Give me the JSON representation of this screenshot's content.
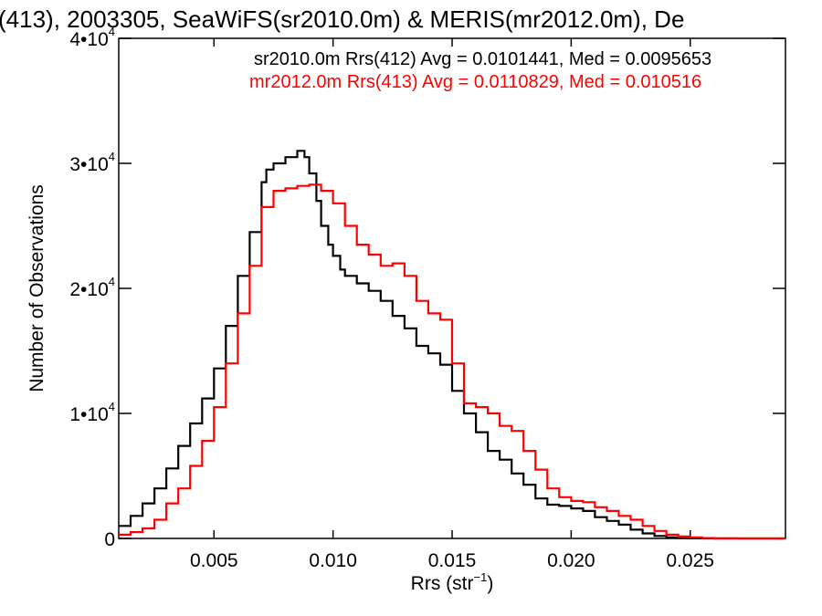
{
  "chart_data": {
    "type": "line",
    "title": "(413), 2003305, SeaWiFS(sr2010.0m) & MERIS(mr2012.0m), De",
    "xlabel": "Rrs (str",
    "xlabel_sup": "−1",
    "xlabel_close": ")",
    "ylabel": "Number of Observations",
    "xlim": [
      0.001,
      0.029
    ],
    "ylim": [
      0,
      40000
    ],
    "grid": false,
    "legend_position": "top-right",
    "xticks": [
      {
        "value": 0.005,
        "label": "0.005"
      },
      {
        "value": 0.01,
        "label": "0.010"
      },
      {
        "value": 0.015,
        "label": "0.015"
      },
      {
        "value": 0.02,
        "label": "0.020"
      },
      {
        "value": 0.025,
        "label": "0.025"
      }
    ],
    "yticks": [
      {
        "value": 0,
        "mant": "0",
        "exp": ""
      },
      {
        "value": 10000,
        "mant": "1•10",
        "exp": "4"
      },
      {
        "value": 20000,
        "mant": "2•10",
        "exp": "4"
      },
      {
        "value": 30000,
        "mant": "3•10",
        "exp": "4"
      },
      {
        "value": 40000,
        "mant": "4•10",
        "exp": "4"
      }
    ],
    "series": [
      {
        "name": "sr2010.0m Rrs(412) Avg = 0.0101441, Med = 0.0095653",
        "color": "#000000",
        "x": [
          0.001,
          0.0015,
          0.002,
          0.0025,
          0.003,
          0.0035,
          0.004,
          0.0045,
          0.005,
          0.0055,
          0.006,
          0.0065,
          0.007,
          0.0072,
          0.0075,
          0.008,
          0.0085,
          0.0088,
          0.009,
          0.0093,
          0.0095,
          0.0098,
          0.01,
          0.0103,
          0.0105,
          0.011,
          0.0115,
          0.012,
          0.0125,
          0.013,
          0.0135,
          0.014,
          0.0145,
          0.015,
          0.0155,
          0.016,
          0.0165,
          0.017,
          0.0175,
          0.018,
          0.0185,
          0.019,
          0.0195,
          0.02,
          0.0205,
          0.021,
          0.0215,
          0.022,
          0.0225,
          0.023,
          0.0235,
          0.024,
          0.0245,
          0.025,
          0.026,
          0.027,
          0.028,
          0.029
        ],
        "y": [
          1000,
          1800,
          2800,
          4000,
          5600,
          7400,
          9200,
          11200,
          13600,
          17000,
          21000,
          24500,
          28500,
          29500,
          30000,
          30500,
          31000,
          30500,
          29200,
          27000,
          25000,
          23500,
          22600,
          21500,
          21000,
          20400,
          19800,
          19000,
          17800,
          16800,
          15400,
          14800,
          13900,
          11800,
          10000,
          8500,
          7000,
          6300,
          5200,
          4300,
          3200,
          2700,
          2600,
          2400,
          2200,
          1700,
          1400,
          1100,
          700,
          400,
          200,
          80,
          30,
          10,
          0,
          0,
          0,
          0
        ]
      },
      {
        "name": "mr2012.0m Rrs(413) Avg = 0.0110829, Med = 0.010516",
        "color": "#ff0000",
        "x": [
          0.001,
          0.0015,
          0.002,
          0.0025,
          0.003,
          0.0035,
          0.004,
          0.0045,
          0.005,
          0.0055,
          0.006,
          0.0065,
          0.007,
          0.0075,
          0.008,
          0.0085,
          0.009,
          0.0095,
          0.01,
          0.0105,
          0.011,
          0.0115,
          0.012,
          0.0125,
          0.013,
          0.0135,
          0.014,
          0.0145,
          0.015,
          0.0155,
          0.016,
          0.0165,
          0.017,
          0.0175,
          0.018,
          0.0185,
          0.019,
          0.0195,
          0.02,
          0.0205,
          0.021,
          0.0215,
          0.022,
          0.0225,
          0.023,
          0.0235,
          0.024,
          0.0245,
          0.025,
          0.0255,
          0.026,
          0.027,
          0.028,
          0.029
        ],
        "y": [
          300,
          500,
          800,
          1500,
          2800,
          4000,
          5800,
          7800,
          10500,
          14000,
          18000,
          21800,
          26500,
          27800,
          28000,
          28200,
          28300,
          27800,
          26800,
          25000,
          23500,
          22700,
          21800,
          22000,
          21000,
          19000,
          18000,
          17500,
          14000,
          10800,
          10500,
          10000,
          9000,
          8600,
          7000,
          5500,
          4000,
          3300,
          3000,
          2900,
          2500,
          2200,
          1800,
          1500,
          1000,
          600,
          300,
          150,
          80,
          30,
          10,
          0,
          0,
          0
        ]
      }
    ]
  }
}
